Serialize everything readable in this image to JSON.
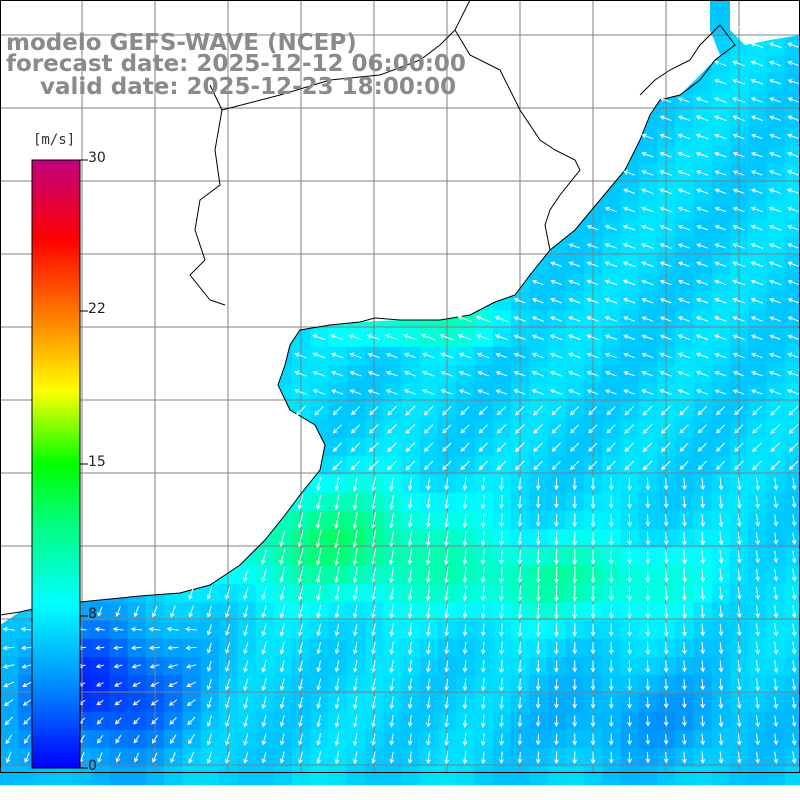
{
  "title": {
    "model": "modelo GEFS-WAVE (NCEP)",
    "forecast": "forecast date: 2025-12-12 06:00:00",
    "valid": "valid date: 2025-12-23 18:00:00"
  },
  "colorbar": {
    "unit": "[m/s]",
    "min": 0,
    "max": 30,
    "tick_labels": [
      "30",
      "22",
      "15",
      "8",
      "0"
    ],
    "tick_values": [
      30,
      22,
      15,
      8,
      0
    ],
    "colors": [
      "#0000ff",
      "#00a0ff",
      "#00ffff",
      "#00ff00",
      "#ffff00",
      "#ff8000",
      "#ff0000",
      "#c00080"
    ]
  },
  "map": {
    "variable": "wind speed and direction (arrows)",
    "land_color": "#ffffff",
    "grid_color": "#808080",
    "coastline_color": "#000000"
  }
}
